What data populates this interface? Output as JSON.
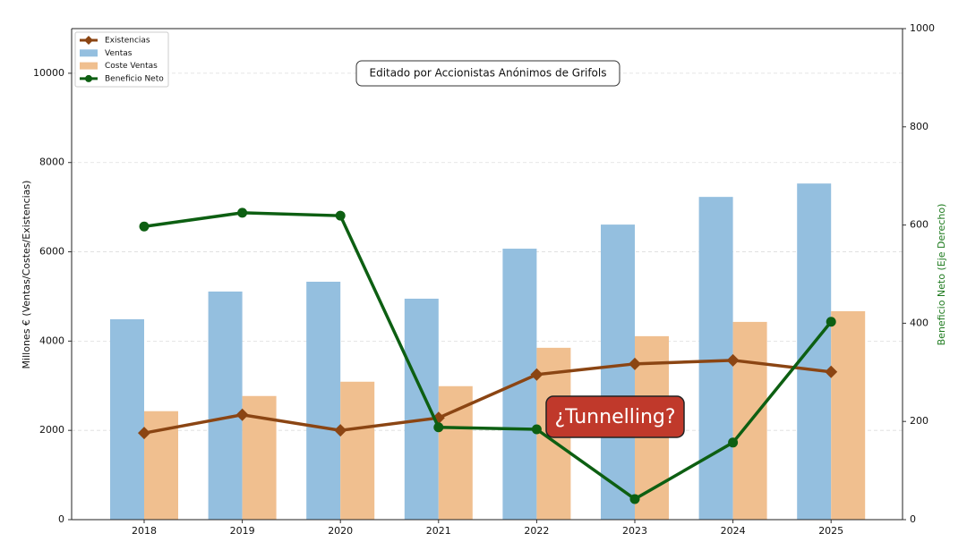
{
  "chart_data": {
    "type": "bar",
    "categories": [
      "2018",
      "2019",
      "2020",
      "2021",
      "2022",
      "2023",
      "2024",
      "2025"
    ],
    "ylabel": "Millones € (Ventas/Costes/Existencias)",
    "y2label": "Beneficio Neto (Eje Derecho)",
    "ylim": [
      0,
      11000
    ],
    "yticks": [
      0,
      2000,
      4000,
      6000,
      8000,
      10000
    ],
    "y2lim": [
      0,
      1000
    ],
    "y2ticks": [
      0,
      200,
      400,
      600,
      800,
      1000
    ],
    "grid": true,
    "legend": "upper left",
    "series": [
      {
        "name": "Existencias",
        "type": "line",
        "marker": "diamond",
        "color": "#8b4513",
        "values": [
          1940,
          2350,
          2000,
          2280,
          3250,
          3490,
          3570,
          3310
        ]
      },
      {
        "name": "Ventas",
        "type": "bar",
        "color": "#94bfdf",
        "values": [
          4490,
          5110,
          5330,
          4950,
          6070,
          6610,
          7230,
          7530
        ]
      },
      {
        "name": "Coste Ventas",
        "type": "bar",
        "color": "#f0bf8f",
        "values": [
          2430,
          2770,
          3090,
          2990,
          3850,
          4110,
          4430,
          4670
        ]
      },
      {
        "name": "Beneficio Neto",
        "type": "line",
        "marker": "circle",
        "axis": "y2",
        "color": "#0d5f12",
        "values": [
          597,
          625,
          619,
          188,
          184,
          42,
          157,
          403
        ]
      }
    ],
    "annotations": [
      "Editado por Accionistas Anónimos de Grifols",
      "¿Tunnelling?"
    ]
  }
}
